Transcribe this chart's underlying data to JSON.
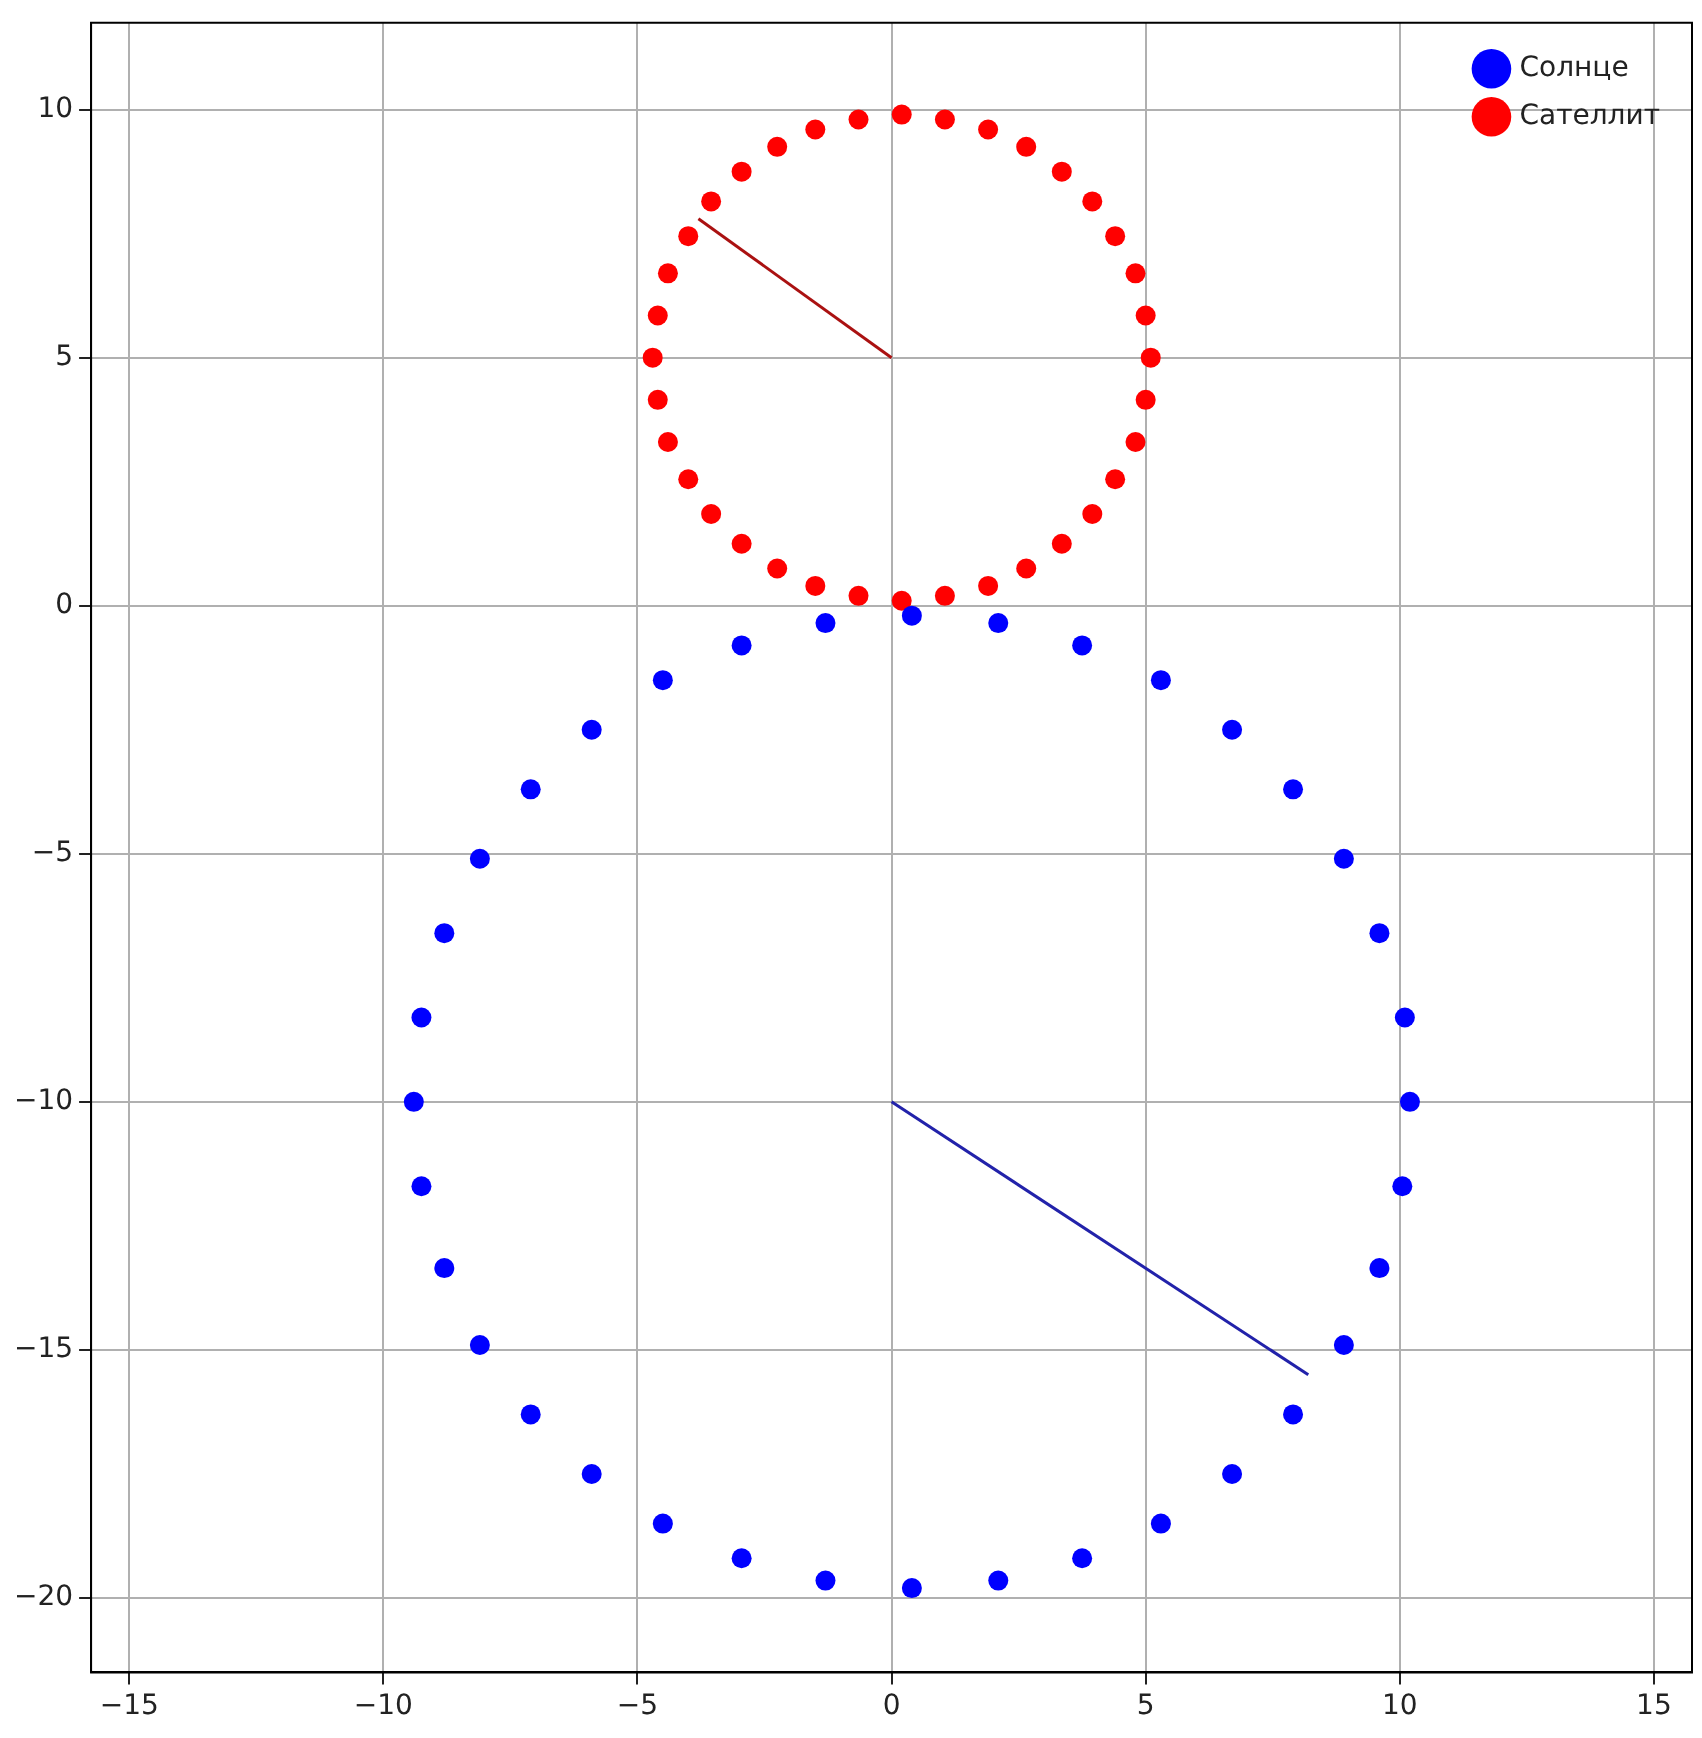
{
  "chart_data": {
    "type": "line",
    "xlim": [
      -15.75,
      15.75
    ],
    "ylim": [
      -21.5,
      11.75
    ],
    "xticks": [
      -15,
      -10,
      -5,
      0,
      5,
      10,
      15
    ],
    "yticks": [
      -20,
      -15,
      -10,
      -5,
      0,
      5,
      10
    ],
    "grid": true,
    "legend": "top right",
    "marker": "circle",
    "series": [
      {
        "name": "Солнце",
        "type": "scatter",
        "color": "#0000ff",
        "x": [
          10.2,
          10.1,
          9.6,
          8.9,
          7.9,
          6.7,
          5.3,
          3.75,
          2.1,
          0.4,
          -1.3,
          -2.95,
          -4.5,
          -5.9,
          -7.1,
          -8.1,
          -8.8,
          -9.25,
          -9.4,
          -9.25,
          -8.8,
          -8.1,
          -7.1,
          -5.9,
          -4.5,
          -2.95,
          -1.3,
          0.4,
          2.1,
          3.75,
          5.3,
          6.7,
          7.9,
          8.9,
          9.6,
          10.05
        ],
        "values": [
          -10,
          -8.3,
          -6.6,
          -5.1,
          -3.7,
          -2.5,
          -1.5,
          -0.8,
          -0.35,
          -0.2,
          -0.35,
          -0.8,
          -1.5,
          -2.5,
          -3.7,
          -5.1,
          -6.6,
          -8.3,
          -10,
          -11.7,
          -13.35,
          -14.9,
          -16.3,
          -17.5,
          -18.5,
          -19.2,
          -19.65,
          -19.8,
          -19.65,
          -19.2,
          -18.5,
          -17.5,
          -16.3,
          -14.9,
          -13.35,
          -11.7
        ]
      },
      {
        "name": "Сателлит",
        "type": "scatter",
        "color": "#ff0000",
        "x": [
          5.1,
          5.0,
          4.8,
          4.4,
          3.95,
          3.35,
          2.65,
          1.9,
          1.05,
          0.2,
          -0.65,
          -1.5,
          -2.25,
          -2.95,
          -3.55,
          -4.0,
          -4.4,
          -4.6,
          -4.7,
          -4.6,
          -4.4,
          -4.0,
          -3.55,
          -2.95,
          -2.25,
          -1.5,
          -0.65,
          0.2,
          1.05,
          1.9,
          2.65,
          3.35,
          3.95,
          4.4,
          4.8,
          5.0
        ],
        "values": [
          5,
          5.85,
          6.7,
          7.45,
          8.15,
          8.75,
          9.25,
          9.6,
          9.8,
          9.9,
          9.8,
          9.6,
          9.25,
          8.75,
          8.15,
          7.45,
          6.7,
          5.85,
          5,
          4.15,
          3.3,
          2.55,
          1.85,
          1.25,
          0.75,
          0.4,
          0.2,
          0.1,
          0.2,
          0.4,
          0.75,
          1.25,
          1.85,
          2.55,
          3.3,
          4.15
        ]
      },
      {
        "color": "#2222aa",
        "marker": "none",
        "x": [
          0,
          8.2
        ],
        "values": [
          -10,
          -15.5
        ]
      },
      {
        "color": "#aa1111",
        "marker": "none",
        "x": [
          0,
          -3.8
        ],
        "values": [
          5,
          7.8
        ]
      }
    ]
  }
}
